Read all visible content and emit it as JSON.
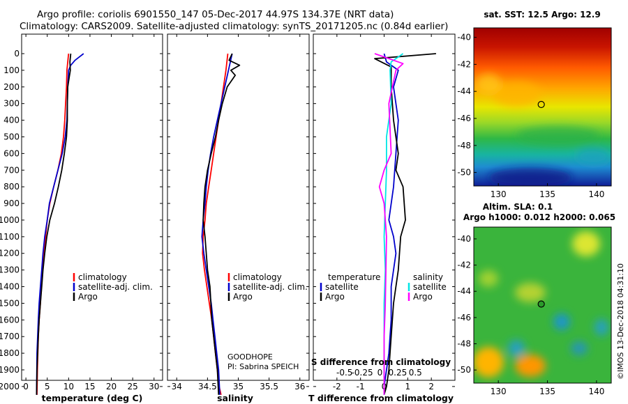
{
  "title": {
    "line1": "Argo profile: coriolis 6901550_147 05-Dec-2017 44.97S 134.37E (NRT data)",
    "line2": "Climatology: CARS2009. Satellite-adjusted climatology: synTS_20171205.nc (0.84d earlier)"
  },
  "colors": {
    "climatology": "#ff0000",
    "satellite": "#0000cc",
    "argo": "#000000",
    "sal_satellite": "#00e5e5",
    "sal_argo": "#ff00ff"
  },
  "legend": {
    "climatology": "climatology",
    "satellite": "satellite-adj. clim.",
    "argo": "Argo"
  },
  "diff_legend": {
    "temp_header": "temperature",
    "sal_header": "salinity",
    "satellite": "satellite",
    "argo": "Argo"
  },
  "annotations": {
    "project": "GOODHOPE",
    "pi": "PI: Sabrina SPEICH",
    "imos": "©IMOS 13-Dec-2018 04:31:10"
  },
  "chart_data": [
    {
      "type": "line",
      "name": "temperature",
      "xlabel": "temperature (deg C)",
      "ylabel": "",
      "xlim": [
        -1,
        32
      ],
      "ylim": [
        2080,
        0
      ],
      "xticks": [
        0,
        5,
        10,
        15,
        20,
        25,
        30
      ],
      "yticks": [
        0,
        100,
        200,
        300,
        400,
        500,
        600,
        700,
        800,
        900,
        1000,
        1100,
        1200,
        1300,
        1400,
        1500,
        1600,
        1700,
        1800,
        1900,
        2000
      ],
      "series": [
        {
          "name": "climatology",
          "color": "#ff0000",
          "x": [
            10.0,
            9.8,
            9.6,
            9.5,
            9.3,
            9.1,
            8.8,
            8.3,
            7.5,
            6.5,
            5.6,
            5.0,
            4.6,
            4.2,
            3.9,
            3.6,
            3.4,
            3.1,
            2.9,
            2.7,
            2.6
          ],
          "y": [
            0,
            50,
            100,
            200,
            300,
            400,
            500,
            600,
            700,
            800,
            900,
            1000,
            1100,
            1200,
            1300,
            1400,
            1500,
            1600,
            1700,
            1900,
            2050
          ]
        },
        {
          "name": "satellite-adj. clim.",
          "color": "#0000cc",
          "x": [
            13.5,
            12.5,
            11.5,
            10.5,
            10.0,
            9.8,
            9.7,
            9.6,
            9.2,
            8.5,
            7.5,
            6.5,
            5.5,
            5.0,
            4.4,
            4.0,
            3.7,
            3.4,
            3.1,
            2.9,
            2.6,
            2.5
          ],
          "y": [
            0,
            20,
            40,
            70,
            100,
            200,
            300,
            400,
            500,
            600,
            700,
            800,
            900,
            1000,
            1100,
            1200,
            1300,
            1400,
            1500,
            1600,
            1800,
            2050
          ]
        },
        {
          "name": "Argo",
          "color": "#000000",
          "x": [
            10.5,
            10.3,
            10.4,
            10.1,
            9.8,
            9.7,
            9.7,
            9.5,
            9.0,
            8.4,
            7.6,
            6.7,
            5.6,
            4.9,
            4.4,
            4.0,
            3.7,
            3.4,
            3.1,
            2.9,
            2.6,
            2.5
          ],
          "y": [
            0,
            50,
            100,
            150,
            200,
            300,
            400,
            500,
            600,
            700,
            800,
            900,
            1000,
            1100,
            1200,
            1300,
            1400,
            1500,
            1600,
            1700,
            1900,
            2050
          ]
        }
      ]
    },
    {
      "type": "line",
      "name": "salinity",
      "xlabel": "salinity",
      "ylabel": "",
      "xlim": [
        33.85,
        36.15
      ],
      "ylim": [
        2080,
        0
      ],
      "xticks": [
        34,
        34.5,
        35,
        35.5,
        36
      ],
      "series": [
        {
          "name": "climatology",
          "color": "#ff0000",
          "x": [
            34.83,
            34.8,
            34.76,
            34.72,
            34.68,
            34.64,
            34.6,
            34.56,
            34.52,
            34.48,
            34.46,
            34.43,
            34.42,
            34.45,
            34.49,
            34.53,
            34.57,
            34.6,
            34.63,
            34.66,
            34.69,
            34.72
          ],
          "y": [
            0,
            100,
            200,
            300,
            400,
            500,
            600,
            700,
            800,
            900,
            1000,
            1100,
            1200,
            1300,
            1400,
            1500,
            1600,
            1700,
            1800,
            1900,
            2000,
            2050
          ]
        },
        {
          "name": "satellite-adj. clim.",
          "color": "#0000cc",
          "x": [
            34.9,
            34.84,
            34.78,
            34.72,
            34.66,
            34.6,
            34.55,
            34.51,
            34.48,
            34.46,
            34.43,
            34.41,
            34.44,
            34.48,
            34.52,
            34.56,
            34.59,
            34.62,
            34.65,
            34.68,
            34.7
          ],
          "y": [
            0,
            100,
            200,
            300,
            400,
            500,
            600,
            700,
            800,
            900,
            1000,
            1100,
            1200,
            1300,
            1400,
            1500,
            1600,
            1700,
            1800,
            1900,
            2050
          ]
        },
        {
          "name": "Argo",
          "color": "#000000",
          "x": [
            34.9,
            34.85,
            35.02,
            34.88,
            34.95,
            34.82,
            34.74,
            34.68,
            34.63,
            34.56,
            34.5,
            34.46,
            34.44,
            34.43,
            34.46,
            34.5,
            34.54,
            34.57,
            34.6,
            34.63,
            34.66,
            34.68
          ],
          "y": [
            0,
            40,
            70,
            100,
            130,
            200,
            300,
            400,
            500,
            600,
            700,
            800,
            900,
            1000,
            1100,
            1300,
            1400,
            1600,
            1700,
            1800,
            1900,
            2050
          ]
        }
      ]
    },
    {
      "type": "line",
      "name": "difference",
      "xlabel": "T difference from climatology",
      "xlabel_top": "S difference from climatology",
      "xlim": [
        -3,
        3
      ],
      "ylim": [
        2080,
        0
      ],
      "xticks": [
        -2,
        -1,
        0,
        1,
        2
      ],
      "top_ticks": [
        "-0.5",
        "-0.25",
        "0",
        "0.25",
        "0.5"
      ],
      "series": [
        {
          "name": "T satellite",
          "color": "#0000cc",
          "x": [
            0,
            0.1,
            0.6,
            0.4,
            0.6,
            0.5,
            0.4,
            0.2,
            0.4,
            0.5,
            0.3,
            0.3,
            0.2,
            0.1,
            0.0,
            0.0
          ],
          "y": [
            0,
            50,
            100,
            200,
            400,
            600,
            800,
            1000,
            1100,
            1200,
            1400,
            1600,
            1800,
            1900,
            2000,
            2050
          ]
        },
        {
          "name": "T Argo",
          "color": "#000000",
          "x": [
            2.2,
            -0.4,
            0.3,
            0.3,
            0.4,
            0.6,
            0.5,
            0.8,
            0.9,
            0.7,
            0.6,
            0.4,
            0.3,
            0.2,
            0.1,
            0.0
          ],
          "y": [
            0,
            30,
            80,
            200,
            400,
            600,
            700,
            800,
            1000,
            1100,
            1300,
            1500,
            1700,
            1900,
            2000,
            2050
          ]
        },
        {
          "name": "S satellite",
          "color": "#00e5e5",
          "x": [
            0.8,
            0.3,
            0.25,
            0.3,
            0.1,
            0.1,
            0.05,
            0.0,
            0.05,
            0.0,
            0.0,
            0.0
          ],
          "y": [
            0,
            50,
            100,
            300,
            500,
            700,
            900,
            1100,
            1300,
            1500,
            1800,
            2050
          ]
        },
        {
          "name": "S Argo",
          "color": "#ff00ff",
          "x": [
            -0.4,
            0.8,
            0.5,
            0.2,
            0.3,
            0.0,
            -0.2,
            0.0,
            0.1,
            0.05,
            0.0,
            0.0
          ],
          "y": [
            0,
            60,
            100,
            300,
            600,
            700,
            800,
            900,
            1100,
            1500,
            1700,
            2050
          ]
        }
      ]
    },
    {
      "type": "heatmap",
      "name": "sst_map",
      "title": "sat. SST: 12.5 Argo: 12.9",
      "xlim": [
        127.5,
        141.5
      ],
      "ylim": [
        -51,
        -39.3
      ],
      "xticks": [
        130,
        135,
        140
      ],
      "yticks": [
        -40,
        -42,
        -44,
        -46,
        -48,
        -50
      ],
      "marker": {
        "lon": 134.37,
        "lat": -44.97
      }
    },
    {
      "type": "heatmap",
      "name": "sla_map",
      "title_line1": "Altim. SLA: 0.1",
      "title_line2": "Argo h1000: 0.012 h2000: 0.065",
      "xlim": [
        127.5,
        141.5
      ],
      "ylim": [
        -51,
        -39.1
      ],
      "xticks": [
        130,
        135,
        140
      ],
      "yticks": [
        -40,
        -42,
        -44,
        -46,
        -48,
        -50
      ],
      "marker": {
        "lon": 134.37,
        "lat": -44.97
      }
    }
  ]
}
